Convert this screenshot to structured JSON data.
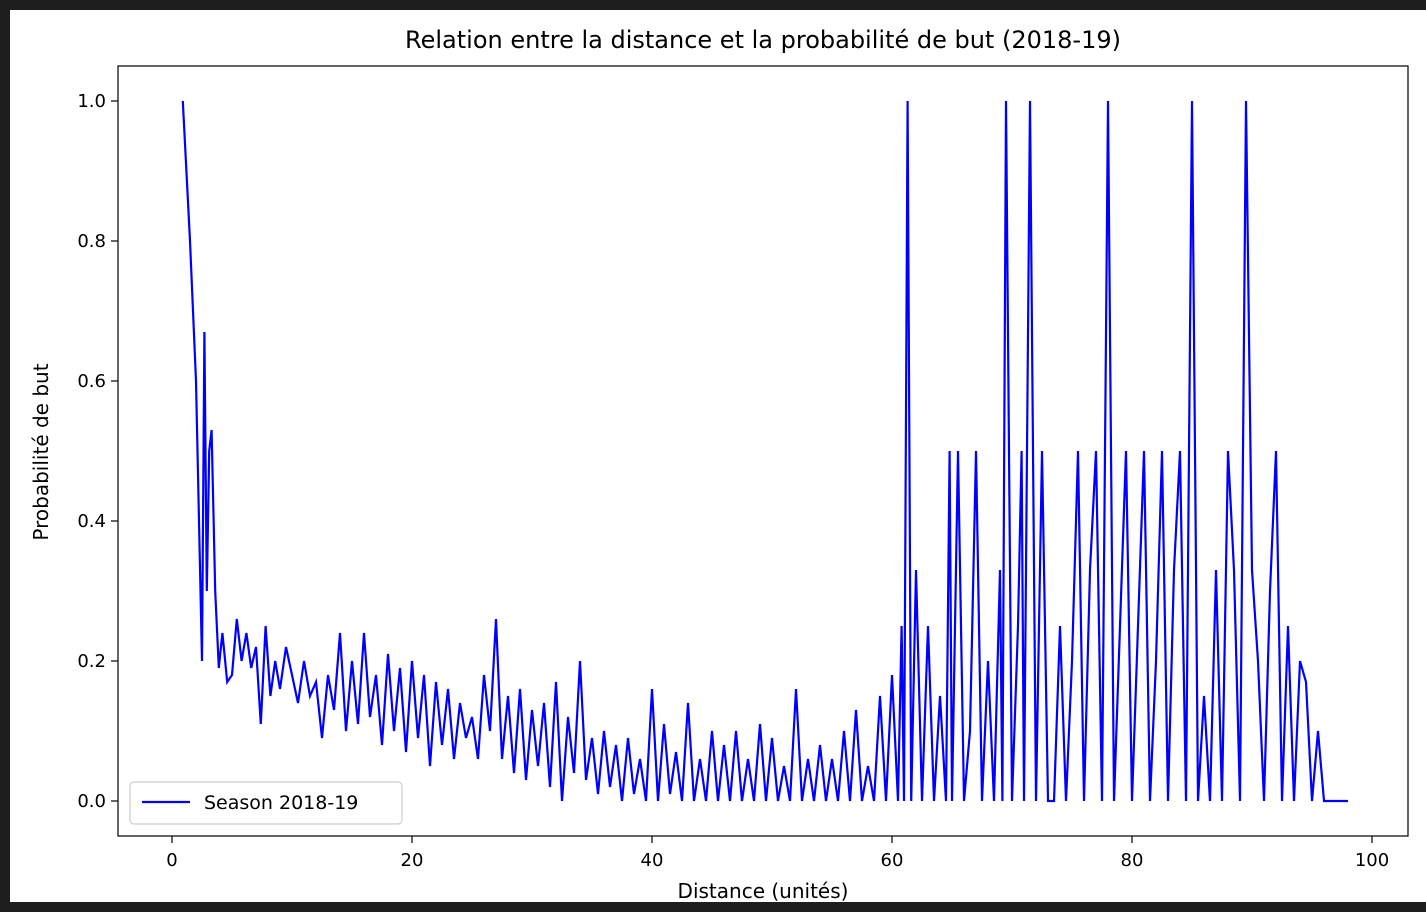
{
  "chart_data": {
    "type": "line",
    "title": "Relation entre la distance et la probabilité de but (2018-19)",
    "xlabel": "Distance (unités)",
    "ylabel": "Probabilité de but",
    "xlim": [
      -4.5,
      103
    ],
    "ylim": [
      -0.05,
      1.05
    ],
    "xticks": [
      0,
      20,
      40,
      60,
      80,
      100
    ],
    "yticks": [
      0.0,
      0.2,
      0.4,
      0.6,
      0.8,
      1.0
    ],
    "xtick_labels": [
      "0",
      "20",
      "40",
      "60",
      "80",
      "100"
    ],
    "ytick_labels": [
      "0.0",
      "0.2",
      "0.4",
      "0.6",
      "0.8",
      "1.0"
    ],
    "grid": false,
    "legend_position": "lower-left",
    "colors": {
      "series": "#0000ff"
    },
    "series": [
      {
        "name": "Season 2018-19",
        "x": [
          0.9,
          1.5,
          2.0,
          2.5,
          2.7,
          2.9,
          3.1,
          3.3,
          3.6,
          3.9,
          4.2,
          4.6,
          5.0,
          5.4,
          5.8,
          6.2,
          6.6,
          7.0,
          7.4,
          7.8,
          8.2,
          8.6,
          9.0,
          9.5,
          10.0,
          10.5,
          11.0,
          11.5,
          12.0,
          12.5,
          13.0,
          13.5,
          14.0,
          14.5,
          15.0,
          15.5,
          16.0,
          16.5,
          17.0,
          17.5,
          18.0,
          18.5,
          19.0,
          19.5,
          20.0,
          20.5,
          21.0,
          21.5,
          22.0,
          22.5,
          23.0,
          23.5,
          24.0,
          24.5,
          25.0,
          25.5,
          26.0,
          26.5,
          27.0,
          27.5,
          28.0,
          28.5,
          29.0,
          29.5,
          30.0,
          30.5,
          31.0,
          31.5,
          32.0,
          32.5,
          33.0,
          33.5,
          34.0,
          34.5,
          35.0,
          35.5,
          36.0,
          36.5,
          37.0,
          37.5,
          38.0,
          38.5,
          39.0,
          39.5,
          40.0,
          40.5,
          41.0,
          41.5,
          42.0,
          42.5,
          43.0,
          43.5,
          44.0,
          44.5,
          45.0,
          45.5,
          46.0,
          46.5,
          47.0,
          47.5,
          48.0,
          48.5,
          49.0,
          49.5,
          50.0,
          50.5,
          51.0,
          51.5,
          52.0,
          52.5,
          53.0,
          53.5,
          54.0,
          54.5,
          55.0,
          55.5,
          56.0,
          56.5,
          57.0,
          57.5,
          58.0,
          58.5,
          59.0,
          59.5,
          60.0,
          60.5,
          60.8,
          61.0,
          61.3,
          61.6,
          62.0,
          62.5,
          63.0,
          63.5,
          64.0,
          64.5,
          64.8,
          65.0,
          65.5,
          66.0,
          66.5,
          67.0,
          67.5,
          68.0,
          68.5,
          69.0,
          69.2,
          69.5,
          70.0,
          70.5,
          70.8,
          71.0,
          71.5,
          72.0,
          72.5,
          73.0,
          73.5,
          74.0,
          74.5,
          75.0,
          75.5,
          76.0,
          76.5,
          77.0,
          77.5,
          78.0,
          78.5,
          79.0,
          79.5,
          80.0,
          80.5,
          81.0,
          81.5,
          82.0,
          82.5,
          83.0,
          83.5,
          84.0,
          84.5,
          85.0,
          85.5,
          86.0,
          86.5,
          87.0,
          87.5,
          88.0,
          88.5,
          89.0,
          89.5,
          90.0,
          90.5,
          91.0,
          91.5,
          92.0,
          92.5,
          93.0,
          93.5,
          94.0,
          94.5,
          95.0,
          95.5,
          96.0,
          97.0,
          98.0
        ],
        "values": [
          1.0,
          0.8,
          0.6,
          0.2,
          0.67,
          0.3,
          0.5,
          0.53,
          0.3,
          0.19,
          0.24,
          0.17,
          0.18,
          0.26,
          0.2,
          0.24,
          0.19,
          0.22,
          0.11,
          0.25,
          0.15,
          0.2,
          0.16,
          0.22,
          0.18,
          0.14,
          0.2,
          0.15,
          0.17,
          0.09,
          0.18,
          0.13,
          0.24,
          0.1,
          0.2,
          0.11,
          0.24,
          0.12,
          0.18,
          0.08,
          0.21,
          0.1,
          0.19,
          0.07,
          0.2,
          0.09,
          0.18,
          0.05,
          0.17,
          0.08,
          0.16,
          0.06,
          0.14,
          0.09,
          0.12,
          0.06,
          0.18,
          0.1,
          0.26,
          0.06,
          0.15,
          0.04,
          0.16,
          0.03,
          0.13,
          0.05,
          0.14,
          0.02,
          0.17,
          0.0,
          0.12,
          0.04,
          0.2,
          0.03,
          0.09,
          0.01,
          0.1,
          0.02,
          0.08,
          0.0,
          0.09,
          0.01,
          0.06,
          0.0,
          0.16,
          0.0,
          0.11,
          0.01,
          0.07,
          0.0,
          0.14,
          0.0,
          0.06,
          0.0,
          0.1,
          0.0,
          0.08,
          0.0,
          0.1,
          0.0,
          0.06,
          0.0,
          0.11,
          0.0,
          0.09,
          0.0,
          0.05,
          0.0,
          0.16,
          0.0,
          0.06,
          0.0,
          0.08,
          0.0,
          0.06,
          0.0,
          0.1,
          0.0,
          0.13,
          0.0,
          0.05,
          0.0,
          0.15,
          0.0,
          0.18,
          0.0,
          0.25,
          0.0,
          1.0,
          0.0,
          0.33,
          0.0,
          0.25,
          0.0,
          0.15,
          0.0,
          0.5,
          0.0,
          0.5,
          0.0,
          0.1,
          0.5,
          0.0,
          0.2,
          0.0,
          0.33,
          0.0,
          1.0,
          0.0,
          0.25,
          0.5,
          0.0,
          1.0,
          0.0,
          0.5,
          0.0,
          0.0,
          0.25,
          0.0,
          0.2,
          0.5,
          0.0,
          0.33,
          0.5,
          0.0,
          1.0,
          0.0,
          0.25,
          0.5,
          0.0,
          0.25,
          0.5,
          0.0,
          0.2,
          0.5,
          0.0,
          0.33,
          0.5,
          0.0,
          1.0,
          0.0,
          0.15,
          0.0,
          0.33,
          0.0,
          0.5,
          0.33,
          0.0,
          1.0,
          0.33,
          0.2,
          0.0,
          0.3,
          0.5,
          0.0,
          0.25,
          0.0,
          0.2,
          0.17,
          0.0,
          0.1,
          0.0,
          0.0,
          0.0
        ]
      }
    ]
  }
}
